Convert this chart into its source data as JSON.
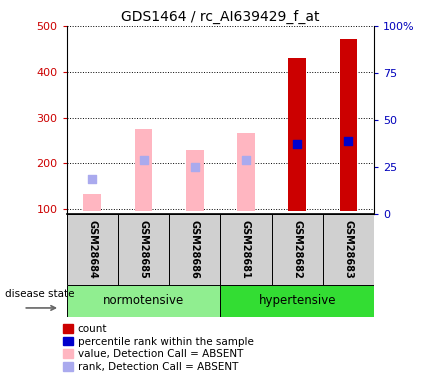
{
  "title": "GDS1464 / rc_AI639429_f_at",
  "samples": [
    "GSM28684",
    "GSM28685",
    "GSM28686",
    "GSM28681",
    "GSM28682",
    "GSM28683"
  ],
  "ylim_left": [
    90,
    500
  ],
  "ylim_right": [
    0,
    100
  ],
  "yticks_left": [
    100,
    200,
    300,
    400,
    500
  ],
  "yticks_right": [
    0,
    25,
    50,
    75,
    100
  ],
  "bar_values": [
    133,
    275,
    230,
    267,
    430,
    473
  ],
  "bar_colors": [
    "#FFB6C1",
    "#FFB6C1",
    "#FFB6C1",
    "#FFB6C1",
    "#CC0000",
    "#CC0000"
  ],
  "rank_values": [
    165,
    207,
    193,
    207,
    243,
    248
  ],
  "rank_colors": [
    "#AAAAEE",
    "#AAAAEE",
    "#AAAAEE",
    "#AAAAEE",
    "#0000CC",
    "#0000CC"
  ],
  "bar_base": 95,
  "bar_width": 0.35,
  "rank_dot_size": 40,
  "ylabel_left_color": "#CC0000",
  "ylabel_right_color": "#0000BB",
  "group_info": [
    {
      "label": "normotensive",
      "start": 0,
      "end": 3,
      "color": "#90EE90"
    },
    {
      "label": "hypertensive",
      "start": 3,
      "end": 6,
      "color": "#33DD33"
    }
  ],
  "disease_label": "disease state",
  "legend_items": [
    {
      "label": "count",
      "color": "#CC0000"
    },
    {
      "label": "percentile rank within the sample",
      "color": "#0000CC"
    },
    {
      "label": "value, Detection Call = ABSENT",
      "color": "#FFB6C1"
    },
    {
      "label": "rank, Detection Call = ABSENT",
      "color": "#AAAAEE"
    }
  ],
  "title_fontsize": 10,
  "tick_fontsize": 8,
  "sample_fontsize": 7,
  "group_fontsize": 8.5,
  "legend_fontsize": 7.5
}
